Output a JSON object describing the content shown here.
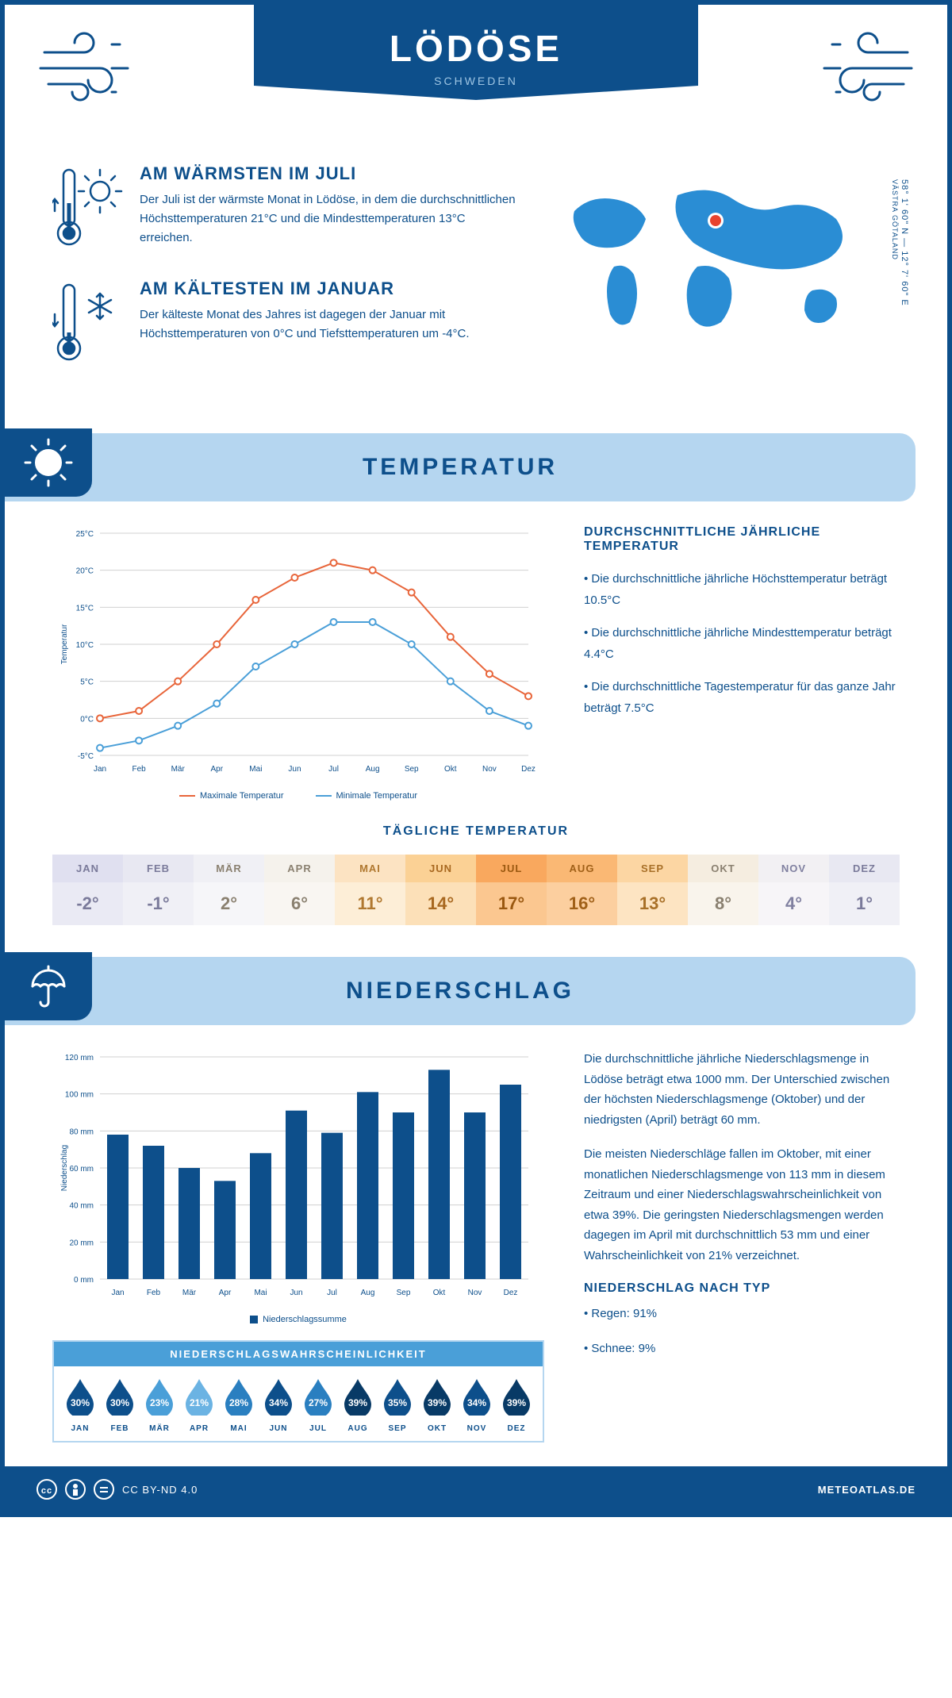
{
  "header": {
    "title": "LÖDÖSE",
    "subtitle": "SCHWEDEN"
  },
  "coords": {
    "lat": "58° 1' 60\" N",
    "lon": "12° 7' 60\" E",
    "region": "VÄSTRA GÖTALAND"
  },
  "intro": {
    "warm": {
      "title": "AM WÄRMSTEN IM JULI",
      "text": "Der Juli ist der wärmste Monat in Lödöse, in dem die durchschnittlichen Höchsttemperaturen 21°C und die Mindesttemperaturen 13°C erreichen."
    },
    "cold": {
      "title": "AM KÄLTESTEN IM JANUAR",
      "text": "Der kälteste Monat des Jahres ist dagegen der Januar mit Höchsttemperaturen von 0°C und Tiefsttemperaturen um -4°C."
    }
  },
  "sections": {
    "temp": "TEMPERATUR",
    "precip": "NIEDERSCHLAG"
  },
  "colors": {
    "primary": "#0d4f8b",
    "light": "#b5d6f0",
    "max_line": "#e8653a",
    "min_line": "#4a9fd8",
    "bar": "#0d4f8b",
    "grid": "#d0d0d0",
    "axis_text": "#0d4f8b"
  },
  "months": [
    "Jan",
    "Feb",
    "Mär",
    "Apr",
    "Mai",
    "Jun",
    "Jul",
    "Aug",
    "Sep",
    "Okt",
    "Nov",
    "Dez"
  ],
  "months_upper": [
    "JAN",
    "FEB",
    "MÄR",
    "APR",
    "MAI",
    "JUN",
    "JUL",
    "AUG",
    "SEP",
    "OKT",
    "NOV",
    "DEZ"
  ],
  "temp_chart": {
    "type": "line",
    "ylabel": "Temperatur",
    "ylim": [
      -5,
      25
    ],
    "ytick_step": 5,
    "max": [
      0,
      1,
      5,
      10,
      16,
      19,
      21,
      20,
      17,
      11,
      6,
      3
    ],
    "min": [
      -4,
      -3,
      -1,
      2,
      7,
      10,
      13,
      13,
      10,
      5,
      1,
      -1
    ],
    "legend_max": "Maximale Temperatur",
    "legend_min": "Minimale Temperatur",
    "title_fontsize": 11,
    "line_width": 2,
    "marker_size": 4
  },
  "temp_text": {
    "title": "DURCHSCHNITTLICHE JÄHRLICHE TEMPERATUR",
    "b1": "• Die durchschnittliche jährliche Höchsttemperatur beträgt 10.5°C",
    "b2": "• Die durchschnittliche jährliche Mindesttemperatur beträgt 4.4°C",
    "b3": "• Die durchschnittliche Tagestemperatur für das ganze Jahr beträgt 7.5°C"
  },
  "daily": {
    "title": "TÄGLICHE TEMPERATUR",
    "values": [
      "-2°",
      "-1°",
      "2°",
      "6°",
      "11°",
      "14°",
      "17°",
      "16°",
      "13°",
      "8°",
      "4°",
      "1°"
    ],
    "bg_head": [
      "#e0e0f0",
      "#e8e8f2",
      "#f0f0f5",
      "#f5f2ec",
      "#fce3c2",
      "#fbd195",
      "#f9a85e",
      "#fab874",
      "#fcd6a3",
      "#f5ede0",
      "#f2f0f3",
      "#e8e8f2"
    ],
    "bg_val": [
      "#eaeaf4",
      "#f0f0f6",
      "#f6f6f9",
      "#f9f6f2",
      "#fdeed7",
      "#fce0b8",
      "#fbc790",
      "#fccf9f",
      "#fde4c2",
      "#f9f4ec",
      "#f7f5f8",
      "#f0f0f6"
    ],
    "text": [
      "#7a7a9a",
      "#7a7a9a",
      "#8a8070",
      "#8a8070",
      "#b07830",
      "#a86820",
      "#9a5810",
      "#a06018",
      "#a87028",
      "#8a8070",
      "#8080a0",
      "#7a7a9a"
    ]
  },
  "precip_chart": {
    "type": "bar",
    "ylabel": "Niederschlag",
    "ylim": [
      0,
      120
    ],
    "ytick_step": 20,
    "values": [
      78,
      72,
      60,
      53,
      68,
      91,
      79,
      101,
      90,
      113,
      90,
      105
    ],
    "legend": "Niederschlagssumme",
    "bar_width": 0.6
  },
  "precip_text": {
    "p1": "Die durchschnittliche jährliche Niederschlagsmenge in Lödöse beträgt etwa 1000 mm. Der Unterschied zwischen der höchsten Niederschlagsmenge (Oktober) und der niedrigsten (April) beträgt 60 mm.",
    "p2": "Die meisten Niederschläge fallen im Oktober, mit einer monatlichen Niederschlagsmenge von 113 mm in diesem Zeitraum und einer Niederschlagswahrscheinlichkeit von etwa 39%. Die geringsten Niederschlagsmengen werden dagegen im April mit durchschnittlich 53 mm und einer Wahrscheinlichkeit von 21% verzeichnet.",
    "type_title": "NIEDERSCHLAG NACH TYP",
    "type1": "• Regen: 91%",
    "type2": "• Schnee: 9%"
  },
  "prob": {
    "title": "NIEDERSCHLAGSWAHRSCHEINLICHKEIT",
    "values": [
      30,
      30,
      23,
      21,
      28,
      34,
      27,
      39,
      35,
      39,
      34,
      39
    ],
    "colors": [
      "#0d4f8b",
      "#0d4f8b",
      "#4a9fd8",
      "#6bb3e3",
      "#2a7fc0",
      "#0d4f8b",
      "#2a7fc0",
      "#083a66",
      "#0d4f8b",
      "#083a66",
      "#0d4f8b",
      "#083a66"
    ]
  },
  "footer": {
    "license": "CC BY-ND 4.0",
    "site": "METEOATLAS.DE"
  }
}
